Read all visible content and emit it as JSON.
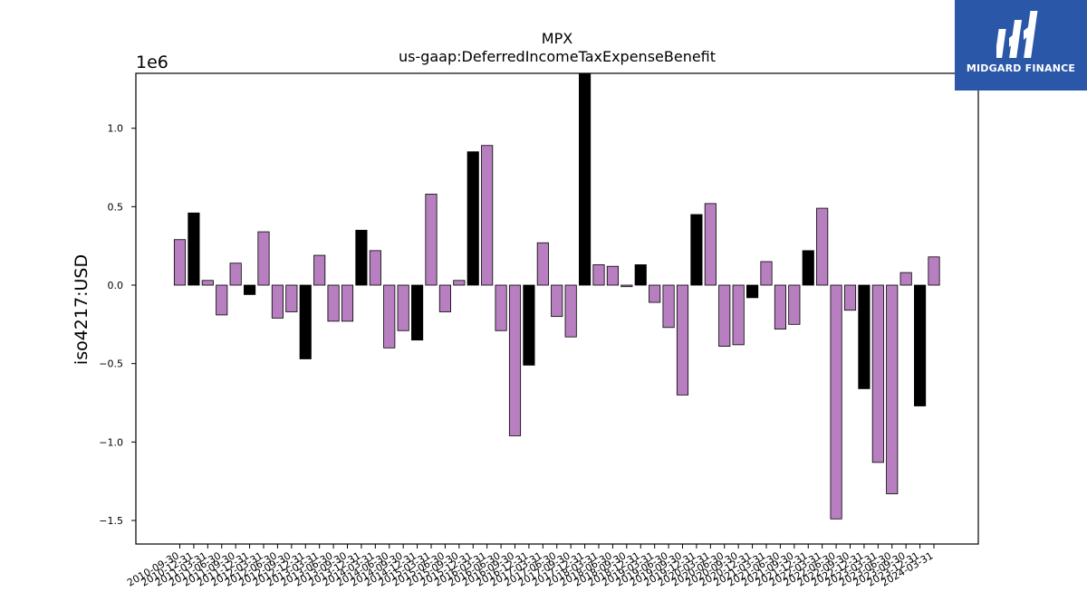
{
  "brand": {
    "name": "MIDGARD FINANCE",
    "bg_color": "#2b57a8",
    "icon": "midgard-logo-icon"
  },
  "chart_data": {
    "type": "bar",
    "title": "MPX",
    "subtitle": "us-gaap:DeferredIncomeTaxExpenseBenefit",
    "xlabel": "",
    "ylabel": "iso4217:USD",
    "offset_label": "1e6",
    "ylim": [
      -1.65,
      1.35
    ],
    "yticks": [
      -1.5,
      -1.0,
      -0.5,
      0.0,
      0.5,
      1.0
    ],
    "ytick_labels": [
      "−1.5",
      "−1.0",
      "−0.5",
      "0.0",
      "0.5",
      "1.0"
    ],
    "grid": false,
    "colors": {
      "positive_default": "#b77fbf",
      "highlight": "#000000",
      "edge": "#000000"
    },
    "categories": [
      "2010-09-30",
      "2010-12-31",
      "2011-03-31",
      "2011-06-30",
      "2011-09-30",
      "2011-12-31",
      "2012-03-31",
      "2012-06-30",
      "2012-09-30",
      "2012-12-31",
      "2013-03-31",
      "2013-06-30",
      "2013-09-30",
      "2013-12-31",
      "2014-03-31",
      "2014-06-30",
      "2014-09-30",
      "2014-12-31",
      "2015-03-31",
      "2015-06-30",
      "2015-09-30",
      "2015-12-31",
      "2016-03-31",
      "2016-06-30",
      "2016-09-30",
      "2016-12-31",
      "2017-03-31",
      "2017-06-30",
      "2017-09-30",
      "2017-12-31",
      "2018-03-31",
      "2018-06-30",
      "2018-09-30",
      "2018-12-31",
      "2019-03-31",
      "2019-06-30",
      "2019-09-30",
      "2019-12-31",
      "2020-03-31",
      "2020-06-30",
      "2020-09-30",
      "2020-12-31",
      "2021-03-31",
      "2021-06-30",
      "2021-09-30",
      "2021-12-31",
      "2022-03-31",
      "2022-06-30",
      "2022-09-30",
      "2022-12-31",
      "2023-03-31",
      "2023-06-30",
      "2023-09-30",
      "2023-12-31",
      "2024-03-31"
    ],
    "values": [
      0.29,
      0.46,
      0.03,
      -0.19,
      0.14,
      -0.06,
      0.34,
      -0.21,
      -0.17,
      -0.47,
      0.19,
      -0.23,
      -0.23,
      0.35,
      0.22,
      -0.4,
      -0.29,
      -0.35,
      0.58,
      -0.17,
      0.03,
      0.85,
      0.89,
      -0.29,
      -0.96,
      -0.51,
      0.27,
      -0.2,
      -0.33,
      1.4,
      0.13,
      0.12,
      -0.01,
      0.13,
      -0.11,
      -0.27,
      -0.7,
      0.45,
      0.52,
      -0.39,
      -0.38,
      -0.08,
      0.15,
      -0.28,
      -0.25,
      0.22,
      0.49,
      -1.49,
      -0.16,
      -0.66,
      -1.13,
      -1.33,
      0.08,
      -0.77,
      0.18
    ],
    "highlight": [
      false,
      true,
      false,
      false,
      false,
      true,
      false,
      false,
      false,
      true,
      false,
      false,
      false,
      true,
      false,
      false,
      false,
      true,
      false,
      false,
      false,
      true,
      false,
      false,
      false,
      true,
      false,
      false,
      false,
      true,
      false,
      false,
      false,
      true,
      false,
      false,
      false,
      true,
      false,
      false,
      false,
      true,
      false,
      false,
      false,
      true,
      false,
      false,
      false,
      true,
      false,
      false,
      false,
      true,
      false
    ]
  }
}
